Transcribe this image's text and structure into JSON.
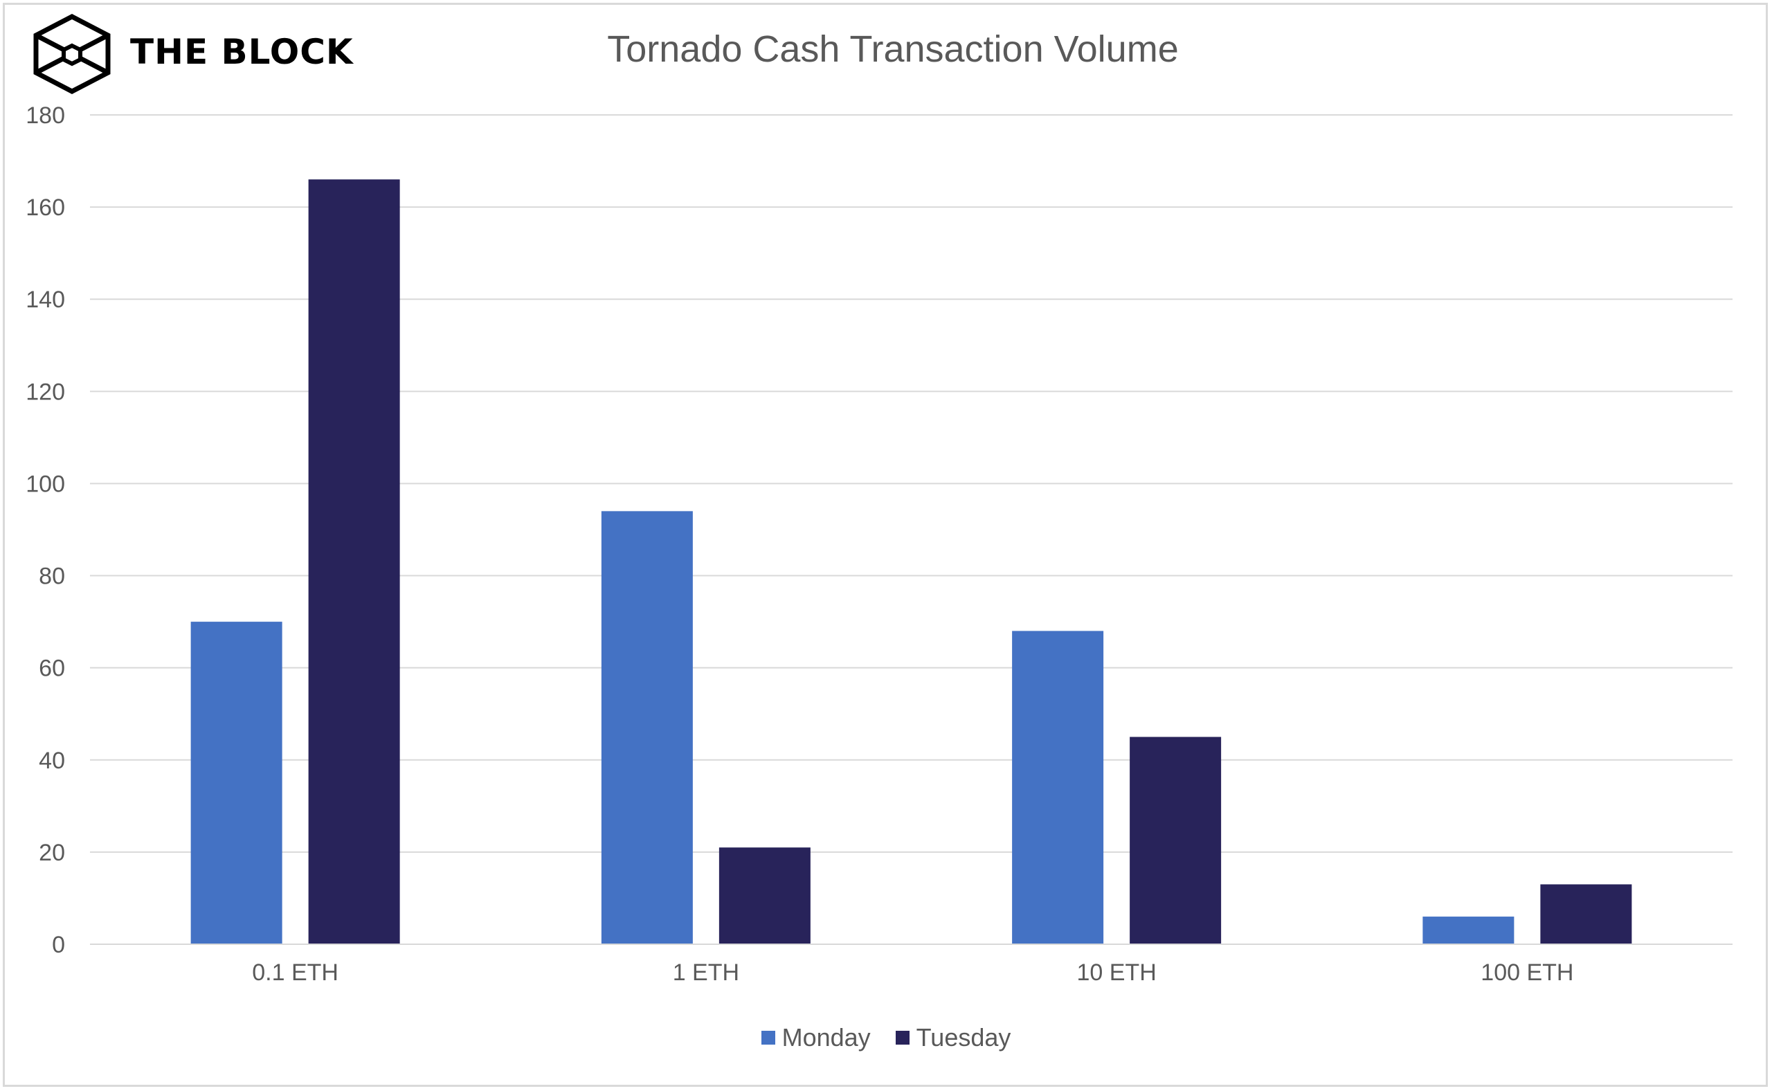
{
  "brand": {
    "name": "THE BLOCK"
  },
  "chart_data": {
    "type": "bar",
    "title": "Tornado Cash Transaction Volume",
    "xlabel": "",
    "ylabel": "",
    "categories": [
      "0.1 ETH",
      "1 ETH",
      "10 ETH",
      "100 ETH"
    ],
    "series": [
      {
        "name": "Monday",
        "color": "#4472c4",
        "values": [
          70,
          94,
          68,
          6
        ]
      },
      {
        "name": "Tuesday",
        "color": "#28235a",
        "values": [
          166,
          21,
          45,
          13
        ]
      }
    ],
    "ylim": [
      0,
      180
    ],
    "yticks": [
      0,
      20,
      40,
      60,
      80,
      100,
      120,
      140,
      160,
      180
    ],
    "grid": true,
    "legend_position": "bottom"
  }
}
